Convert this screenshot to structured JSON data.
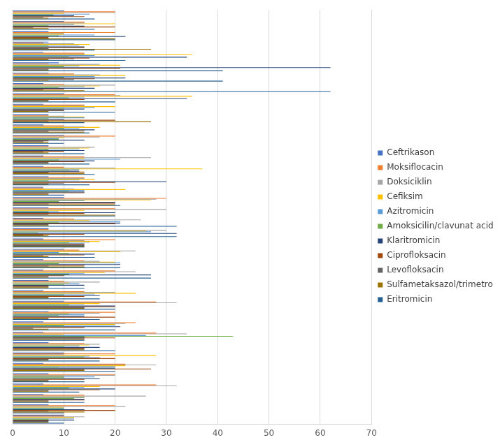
{
  "chart_data": {
    "type": "bar",
    "orientation": "horizontal",
    "grid": true,
    "legend": "right",
    "tick_labels": "x",
    "xlim": [
      0,
      70
    ],
    "xticks": [
      0,
      10,
      20,
      30,
      40,
      50,
      60,
      70
    ],
    "categories": [
      null,
      null,
      null,
      null,
      null,
      null,
      null,
      null,
      null,
      null,
      null,
      null,
      null,
      null,
      null,
      null,
      null,
      null,
      null,
      null,
      null,
      null,
      null,
      null,
      null,
      null,
      null,
      null,
      null,
      null,
      null,
      null,
      null,
      null,
      null,
      null,
      null,
      null,
      null,
      null
    ],
    "series": [
      {
        "name": "Ceftrikason",
        "color": "#4472c4",
        "values": [
          10,
          10,
          7,
          7,
          6,
          9,
          7,
          6,
          10,
          6,
          7,
          6,
          10,
          7,
          6,
          6,
          7,
          6,
          10,
          7,
          6,
          7,
          6,
          10,
          6,
          6,
          7,
          6,
          10,
          7,
          6,
          6,
          7,
          10,
          6,
          7,
          6,
          6,
          7,
          10
        ]
      },
      {
        "name": "Moksiflocacin",
        "color": "#ed7d31",
        "values": [
          20,
          14,
          20,
          6,
          14,
          7,
          12,
          10,
          20,
          14,
          7,
          10,
          20,
          7,
          14,
          10,
          14,
          6,
          30,
          20,
          12,
          7,
          20,
          13,
          14,
          20,
          10,
          14,
          28,
          20,
          24,
          28,
          14,
          20,
          22,
          20,
          28,
          14,
          20,
          10
        ]
      },
      {
        "name": "Doksiciklin",
        "color": "#a5a5a5",
        "values": [
          20,
          14,
          10,
          12,
          14,
          17,
          17,
          20,
          21,
          14,
          10,
          14,
          17,
          16,
          27,
          20,
          14,
          12,
          28,
          30,
          25,
          30,
          14,
          24,
          17,
          24,
          17,
          20,
          32,
          17,
          22,
          34,
          17,
          10,
          28,
          20,
          32,
          26,
          22,
          14
        ]
      },
      {
        "name": "Cefiksim",
        "color": "#ffc000",
        "values": [
          10,
          20,
          10,
          15,
          35,
          21,
          22,
          17,
          35,
          20,
          14,
          17,
          10,
          15,
          14,
          37,
          16,
          22,
          27,
          14,
          15,
          26,
          17,
          21,
          20,
          18,
          11,
          24,
          17,
          11,
          20,
          10,
          15,
          28,
          22,
          10,
          17,
          14,
          10,
          12
        ]
      },
      {
        "name": "Azitromicin",
        "color": "#5b9bd5",
        "values": [
          15,
          12,
          16,
          13,
          16,
          13,
          16,
          14,
          14,
          16,
          14,
          13,
          9,
          13,
          21,
          13,
          13,
          14,
          14,
          9,
          21,
          27,
          15,
          9,
          21,
          14,
          13,
          16,
          14,
          14,
          20,
          26,
          13,
          15,
          20,
          16,
          14,
          14,
          10,
          12
        ]
      },
      {
        "name": "Amoksicilin/clavunat acid",
        "color": "#70ad47",
        "values": [
          8,
          7,
          9,
          7,
          11,
          10,
          10,
          9,
          11,
          10,
          7,
          10,
          9,
          7,
          9,
          11,
          7,
          11,
          9,
          7,
          9,
          5,
          11,
          11,
          9,
          11,
          10,
          10,
          11,
          9,
          10,
          43,
          10,
          14,
          9,
          10,
          11,
          12,
          10,
          7
        ]
      },
      {
        "name": "Klaritromicin",
        "color": "#264478",
        "values": [
          12,
          14,
          22,
          14,
          34,
          62,
          22,
          16,
          34,
          14,
          10,
          16,
          14,
          14,
          16,
          13,
          30,
          14,
          20,
          20,
          21,
          32,
          14,
          16,
          21,
          27,
          14,
          17,
          20,
          14,
          21,
          14,
          17,
          17,
          20,
          17,
          20,
          14,
          14,
          12
        ]
      },
      {
        "name": "Ciprofloksacin",
        "color": "#9e480e",
        "values": [
          14,
          20,
          7,
          14,
          15,
          21,
          16,
          10,
          14,
          10,
          20,
          14,
          7,
          10,
          14,
          14,
          20,
          14,
          20,
          14,
          20,
          14,
          14,
          14,
          14,
          10,
          7,
          14,
          20,
          20,
          14,
          20,
          14,
          20,
          27,
          14,
          17,
          14,
          20,
          7
        ]
      },
      {
        "name": "Levofloksacin",
        "color": "#636363",
        "values": [
          6,
          4,
          7,
          7,
          12,
          7,
          12,
          6,
          7,
          10,
          7,
          7,
          6,
          6,
          7,
          7,
          10,
          7,
          7,
          7,
          7,
          6,
          14,
          6,
          7,
          7,
          7,
          7,
          14,
          7,
          4,
          14,
          14,
          7,
          14,
          7,
          7,
          7,
          7,
          7
        ]
      },
      {
        "name": "Sulfametaksazol/trimetroprim",
        "color": "#997300",
        "values": [
          7,
          7,
          20,
          27,
          7,
          7,
          7,
          14,
          7,
          7,
          27,
          14,
          7,
          7,
          7,
          14,
          7,
          7,
          20,
          20,
          7,
          7,
          14,
          7,
          14,
          7,
          7,
          7,
          14,
          7,
          7,
          14,
          14,
          7,
          14,
          7,
          7,
          7,
          14,
          7
        ]
      },
      {
        "name": "Eritromicin",
        "color": "#255e91",
        "values": [
          16,
          16,
          20,
          16,
          22,
          41,
          41,
          62,
          20,
          20,
          14,
          15,
          10,
          14,
          15,
          16,
          15,
          10,
          21,
          20,
          32,
          32,
          14,
          16,
          21,
          27,
          14,
          17,
          20,
          17,
          20,
          14,
          20,
          17,
          20,
          14,
          13,
          14,
          10,
          10
        ]
      }
    ]
  }
}
